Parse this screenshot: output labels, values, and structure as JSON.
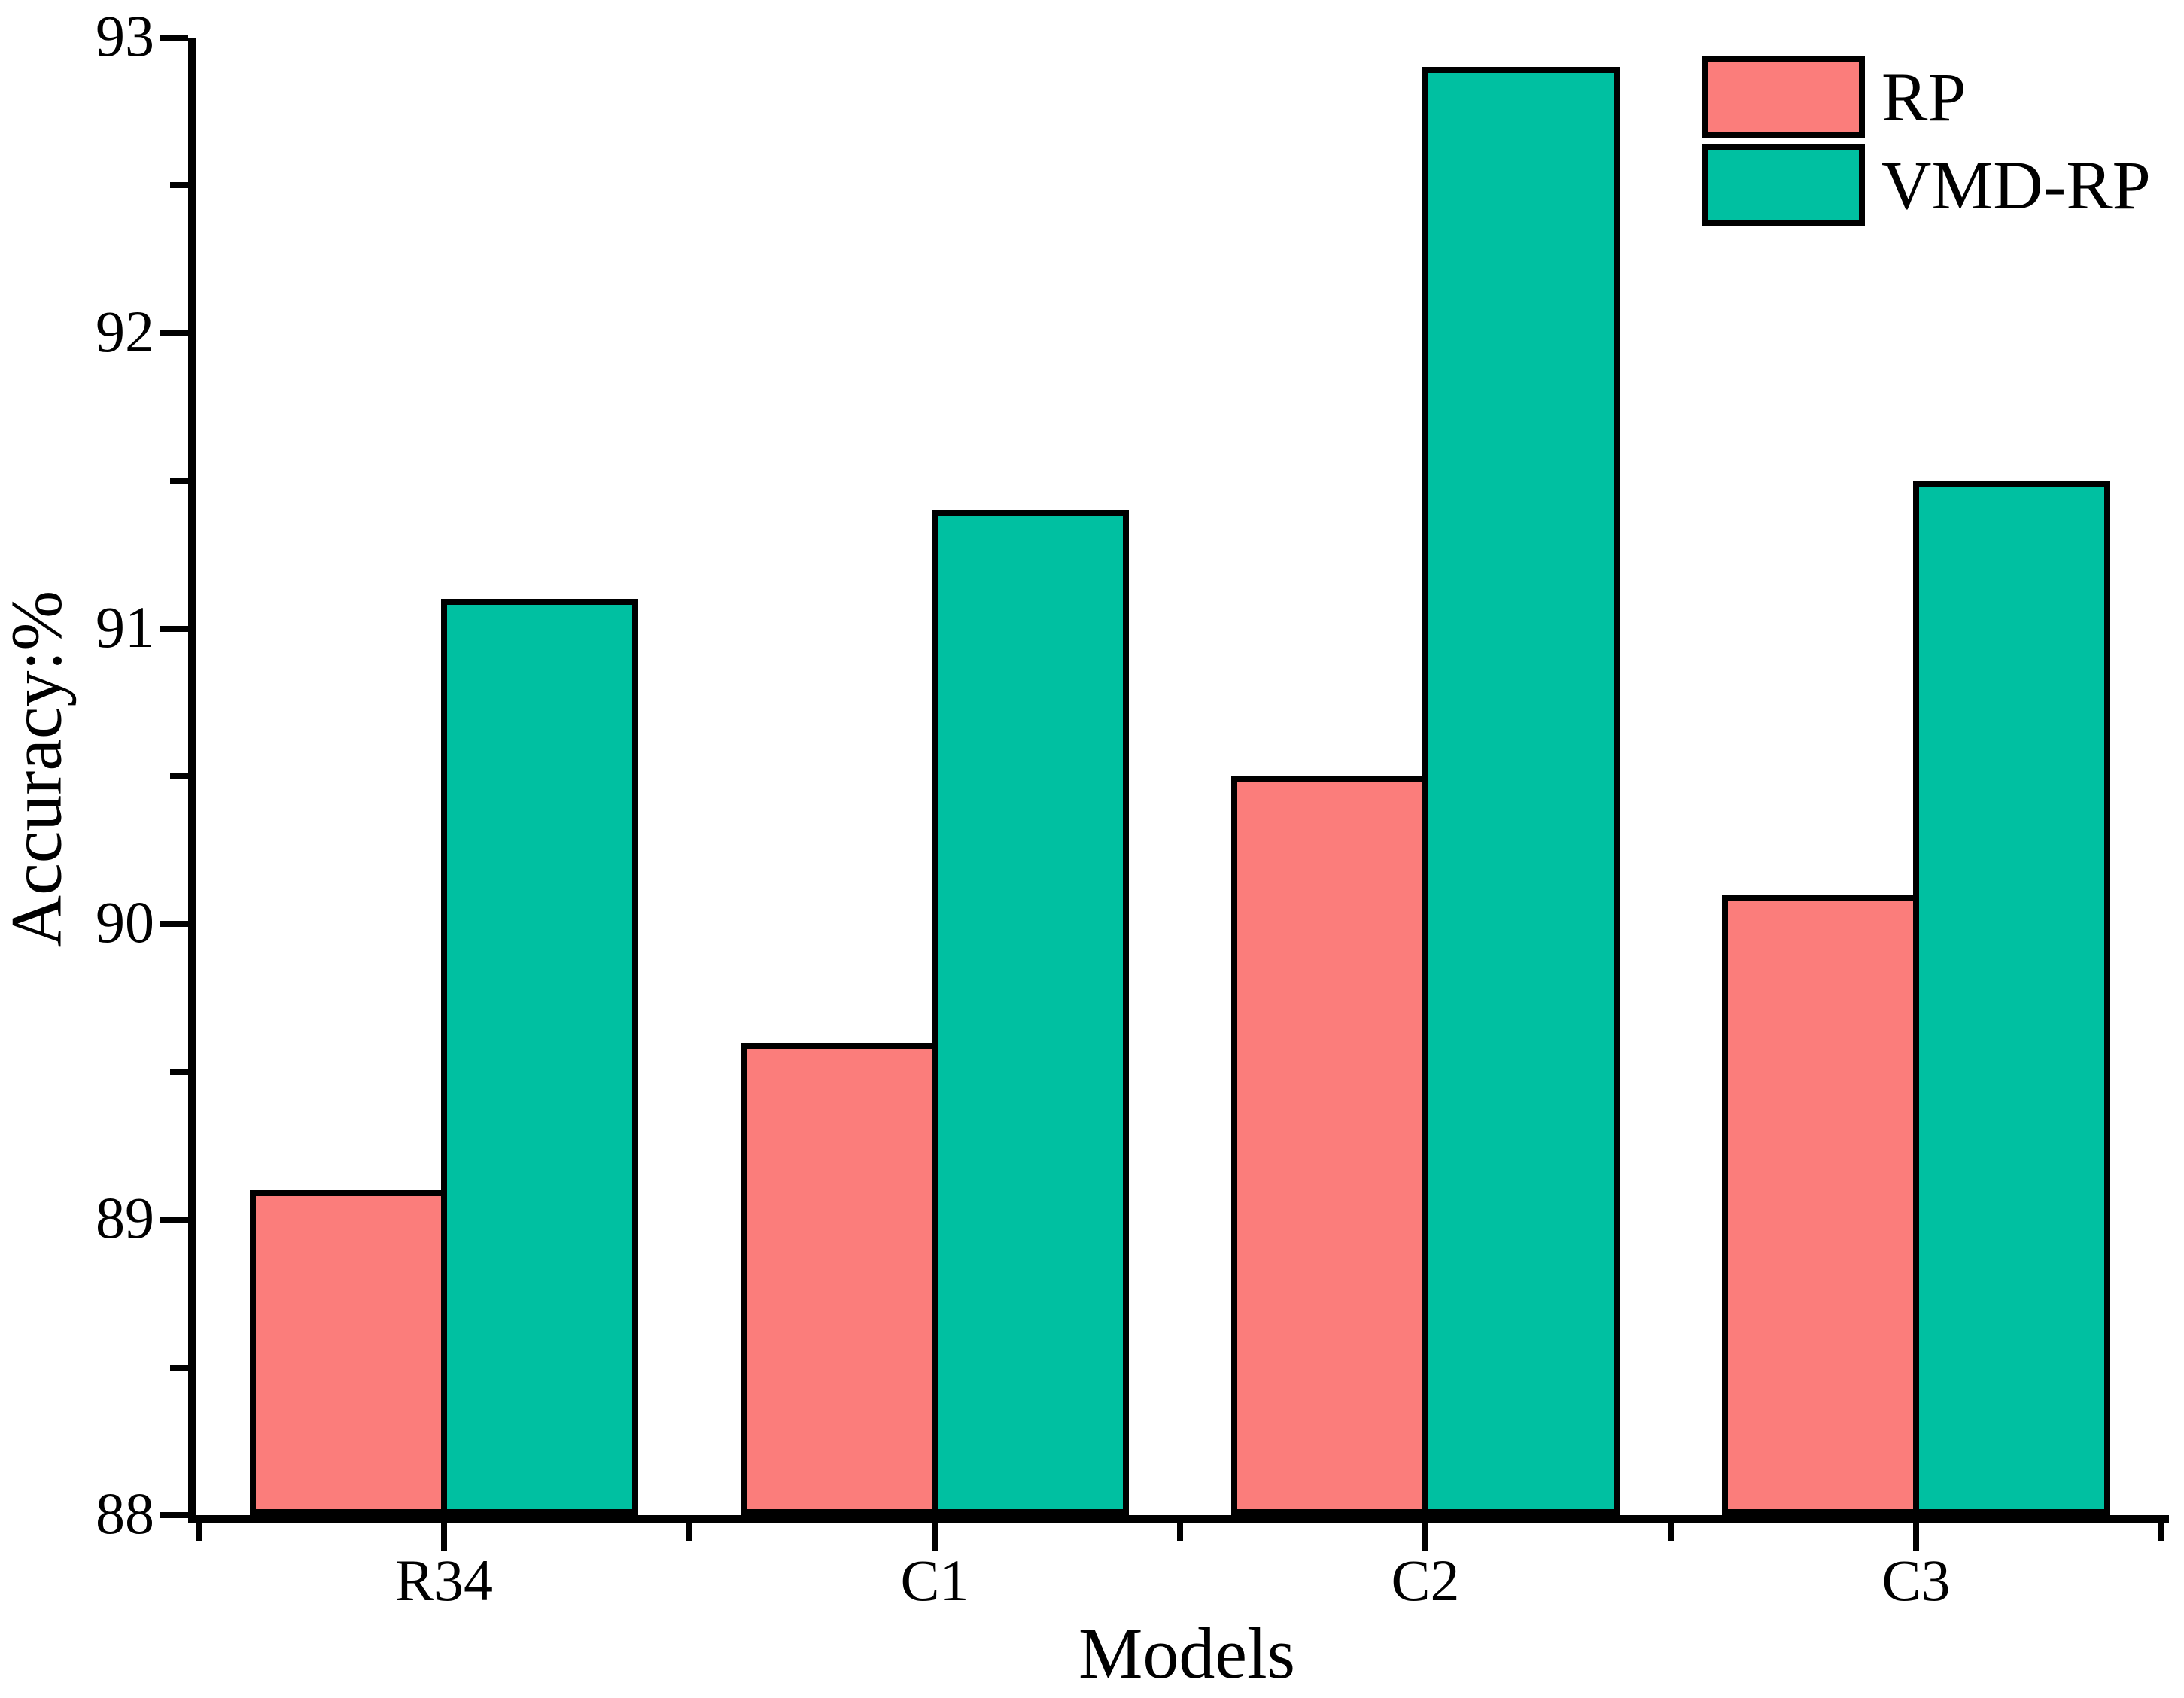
{
  "chart_data": {
    "type": "bar",
    "title": "",
    "categories": [
      "R34",
      "C1",
      "C2",
      "C3"
    ],
    "series": [
      {
        "name": "RP",
        "color": "#FB7D7B",
        "values": [
          89.1,
          89.6,
          90.5,
          90.1
        ]
      },
      {
        "name": "VMD-RP",
        "color": "#00C0A1",
        "values": [
          91.1,
          91.4,
          92.9,
          91.5
        ]
      }
    ],
    "xlabel": "Models",
    "ylabel": "Accuracy:%",
    "ylim": [
      88,
      93
    ],
    "y_major_step": 1,
    "y_minor_step": 0.5,
    "y_tick_labels": [
      "88",
      "89",
      "90",
      "91",
      "92",
      "93"
    ],
    "grid": false,
    "legend_position": "top-right",
    "bar_outline_color": "#000000",
    "axis_color": "#000000"
  }
}
